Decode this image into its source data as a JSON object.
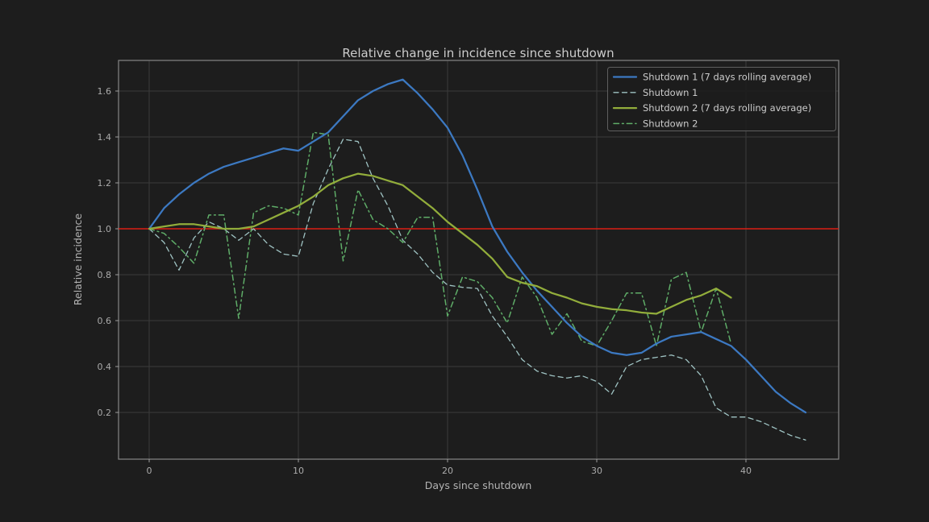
{
  "chart_data": {
    "type": "line",
    "title": "Relative change in incidence since shutdown",
    "xlabel": "Days since shutdown",
    "ylabel": "Relative incidence",
    "xlim": [
      -2.05,
      46.2
    ],
    "ylim": [
      -0.01,
      1.735
    ],
    "x_ticks": [
      0,
      10,
      20,
      30,
      40
    ],
    "y_ticks": [
      0.2,
      0.4,
      0.6,
      0.8,
      1.0,
      1.2,
      1.4,
      1.6
    ],
    "grid": true,
    "legend_position": "upper right",
    "baseline": {
      "y": 1.0,
      "color": "#dc1f14"
    },
    "x_unit": "days since shutdown, one point per day starting at day 0",
    "series": [
      {
        "name": "Shutdown 1 (7 days rolling average)",
        "style": "solid",
        "color": "#3c79c2",
        "width": 2.25,
        "values": [
          1.0,
          1.09,
          1.15,
          1.2,
          1.24,
          1.27,
          1.29,
          1.31,
          1.33,
          1.35,
          1.34,
          1.38,
          1.42,
          1.49,
          1.56,
          1.6,
          1.63,
          1.65,
          1.59,
          1.52,
          1.44,
          1.32,
          1.17,
          1.01,
          0.9,
          0.81,
          0.73,
          0.66,
          0.59,
          0.53,
          0.49,
          0.46,
          0.45,
          0.46,
          0.5,
          0.53,
          0.54,
          0.55,
          0.52,
          0.49,
          0.43,
          0.36,
          0.29,
          0.24,
          0.2
        ]
      },
      {
        "name": "Shutdown 1",
        "style": "dashed",
        "color": "#9fc3c3",
        "width": 1.3,
        "values": [
          1.0,
          0.94,
          0.82,
          0.96,
          1.03,
          1.0,
          0.95,
          1.0,
          0.93,
          0.89,
          0.88,
          1.11,
          1.26,
          1.39,
          1.38,
          1.22,
          1.1,
          0.95,
          0.89,
          0.81,
          0.755,
          0.745,
          0.74,
          0.62,
          0.53,
          0.43,
          0.38,
          0.36,
          0.35,
          0.36,
          0.335,
          0.28,
          0.4,
          0.43,
          0.44,
          0.45,
          0.43,
          0.36,
          0.22,
          0.18,
          0.18,
          0.16,
          0.13,
          0.1,
          0.08
        ]
      },
      {
        "name": "Shutdown 2 (7 days rolling average)",
        "style": "solid",
        "color": "#92ad3b",
        "width": 2.25,
        "values": [
          1.0,
          1.01,
          1.02,
          1.02,
          1.01,
          1.0,
          1.0,
          1.01,
          1.04,
          1.07,
          1.1,
          1.14,
          1.19,
          1.22,
          1.24,
          1.23,
          1.21,
          1.19,
          1.14,
          1.09,
          1.03,
          0.98,
          0.93,
          0.87,
          0.79,
          0.765,
          0.75,
          0.72,
          0.7,
          0.675,
          0.66,
          0.65,
          0.645,
          0.635,
          0.63,
          0.66,
          0.69,
          0.71,
          0.74,
          0.7
        ]
      },
      {
        "name": "Shutdown 2",
        "style": "dashdot",
        "color": "#5fad68",
        "width": 1.5,
        "values": [
          1.0,
          0.98,
          0.92,
          0.85,
          1.06,
          1.06,
          0.61,
          1.07,
          1.1,
          1.09,
          1.06,
          1.42,
          1.41,
          0.86,
          1.17,
          1.04,
          1.0,
          0.94,
          1.05,
          1.05,
          0.62,
          0.79,
          0.77,
          0.7,
          0.59,
          0.79,
          0.7,
          0.54,
          0.63,
          0.51,
          0.49,
          0.6,
          0.72,
          0.72,
          0.49,
          0.78,
          0.81,
          0.55,
          0.74,
          0.5
        ]
      }
    ]
  },
  "colors": {
    "background": "#1d1d1d",
    "grid": "#3a3a3a",
    "spine": "#858585",
    "tick": "#ababab",
    "title_text": "#cccccc",
    "axis_text": "#b3b3b3",
    "legend_border": "#5f5f5f",
    "legend_background": "#1d1d1d"
  }
}
